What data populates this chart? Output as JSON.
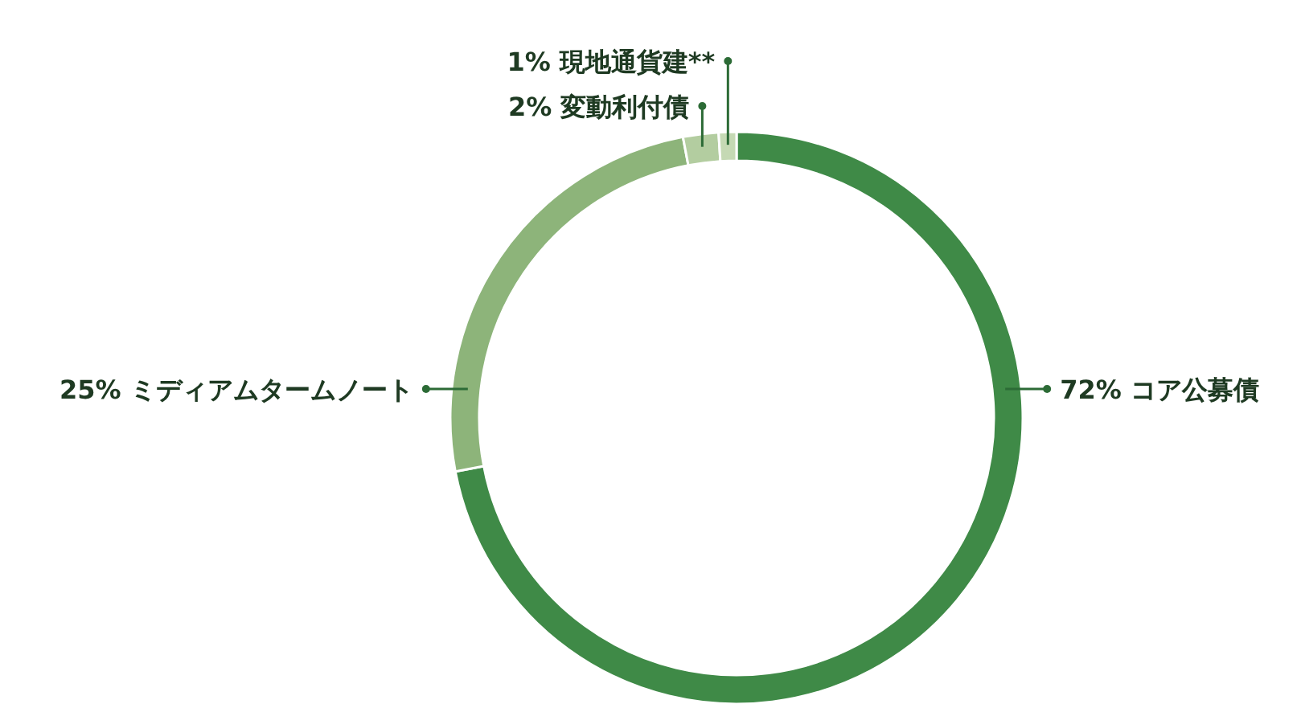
{
  "chart_data": {
    "type": "donut",
    "categories": [
      "コア公募債",
      "ミディアムタームノート",
      "変動利付債",
      "現地通貨建**"
    ],
    "values": [
      72,
      25,
      2,
      1
    ],
    "value_labels": [
      "72%",
      "25%",
      "2%",
      "1%"
    ],
    "colors": [
      "#3f8a47",
      "#8db47a",
      "#b3cda0",
      "#c5d9b4"
    ]
  }
}
